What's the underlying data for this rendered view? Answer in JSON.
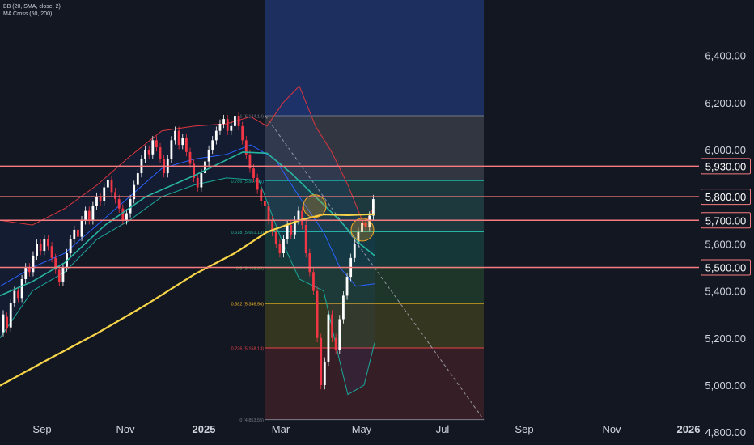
{
  "indicators": [
    "BB (20, SMA, close, 2)",
    "MA Cross (50, 200)"
  ],
  "colors": {
    "background": "#131722",
    "up_candle": "#ffffff",
    "down_candle": "#f23645",
    "bb_upper": "#d9363e",
    "bb_lower": "#1ba89a",
    "bb_basis": "#2962ff",
    "ma50": "#26b5a0",
    "ma200": "#f7d548",
    "horizontal_level": "#f77c80",
    "axis_text": "#d1d4dc",
    "trendline": "#9598a1"
  },
  "chart_data": {
    "type": "candlestick",
    "x_axis_ticks": [
      "Sep",
      "Nov",
      "2025",
      "Mar",
      "May",
      "Jul",
      "Sep",
      "Nov",
      "2026"
    ],
    "y_axis_ticks": [
      "6,400.00",
      "6,200.00",
      "6,000.00",
      "5,600.00",
      "5,400.00",
      "5,200.00",
      "5,000.00",
      "4,800.00"
    ],
    "y_range": [
      4780,
      6560
    ],
    "horizontal_levels": [
      {
        "value": 5930,
        "label": "5,930.00"
      },
      {
        "value": 5800,
        "label": "5,800.00"
      },
      {
        "value": 5700,
        "label": "5,700.00"
      },
      {
        "value": 5500,
        "label": "5,500.00"
      }
    ],
    "fibonacci_retracement": [
      {
        "ratio": "1",
        "value": 6144.14,
        "label": "1 (6,144.14)",
        "color": "#787b86",
        "fill": "#363a45"
      },
      {
        "ratio": "0.786",
        "value": 5867.95,
        "label": "0.786 (5,867.95)",
        "color": "#1ba89a",
        "fill": "#1f3d40"
      },
      {
        "ratio": "0.618",
        "value": 5651.13,
        "label": "0.618 (5,651.13)",
        "color": "#26b5a0",
        "fill": "#163b3a"
      },
      {
        "ratio": "0.5",
        "value": 5498.85,
        "label": "0.5 (5,498.85)",
        "color": "#4caf50",
        "fill": "#1f3a2a"
      },
      {
        "ratio": "0.382",
        "value": 5346.56,
        "label": "0.382 (5,346.56)",
        "color": "#f2b824",
        "fill": "#3a3a1f"
      },
      {
        "ratio": "0.236",
        "value": 5158.13,
        "label": "0.236 (5,158.13)",
        "color": "#e8414a",
        "fill": "#3b1f27"
      },
      {
        "ratio": "0",
        "value": 4853.55,
        "label": "0 (4,853.55)",
        "color": "#787b86",
        "fill": null
      }
    ],
    "ma200_series": [
      [
        0,
        4998
      ],
      [
        60,
        5110
      ],
      [
        120,
        5220
      ],
      [
        180,
        5340
      ],
      [
        240,
        5470
      ],
      [
        290,
        5560
      ],
      [
        330,
        5650
      ],
      [
        370,
        5700
      ],
      [
        400,
        5725
      ],
      [
        430,
        5722
      ],
      [
        463,
        5726
      ]
    ],
    "ma50_series": [
      [
        0,
        5380
      ],
      [
        40,
        5440
      ],
      [
        80,
        5520
      ],
      [
        130,
        5680
      ],
      [
        180,
        5800
      ],
      [
        240,
        5890
      ],
      [
        300,
        5990
      ],
      [
        330,
        5985
      ],
      [
        360,
        5900
      ],
      [
        390,
        5800
      ],
      [
        420,
        5700
      ],
      [
        445,
        5600
      ],
      [
        463,
        5550
      ]
    ],
    "bb_upper_series": [
      [
        0,
        5700
      ],
      [
        40,
        5680
      ],
      [
        80,
        5750
      ],
      [
        120,
        5850
      ],
      [
        160,
        5970
      ],
      [
        200,
        6080
      ],
      [
        240,
        6100
      ],
      [
        280,
        6110
      ],
      [
        310,
        6140
      ],
      [
        330,
        6100
      ],
      [
        350,
        6200
      ],
      [
        370,
        6270
      ],
      [
        390,
        6100
      ],
      [
        410,
        5990
      ],
      [
        430,
        5850
      ],
      [
        450,
        5680
      ],
      [
        463,
        5760
      ]
    ],
    "bb_lower_series": [
      [
        0,
        5200
      ],
      [
        40,
        5400
      ],
      [
        80,
        5480
      ],
      [
        120,
        5620
      ],
      [
        160,
        5700
      ],
      [
        200,
        5800
      ],
      [
        240,
        5850
      ],
      [
        280,
        5880
      ],
      [
        320,
        5870
      ],
      [
        350,
        5600
      ],
      [
        370,
        5450
      ],
      [
        400,
        5400
      ],
      [
        420,
        5100
      ],
      [
        430,
        4960
      ],
      [
        450,
        5000
      ],
      [
        463,
        5180
      ]
    ],
    "bb_basis_series": [
      [
        0,
        5420
      ],
      [
        40,
        5500
      ],
      [
        80,
        5560
      ],
      [
        120,
        5680
      ],
      [
        160,
        5800
      ],
      [
        200,
        5920
      ],
      [
        240,
        5960
      ],
      [
        280,
        5980
      ],
      [
        310,
        6020
      ],
      [
        340,
        5960
      ],
      [
        370,
        5800
      ],
      [
        400,
        5650
      ],
      [
        420,
        5500
      ],
      [
        440,
        5420
      ],
      [
        463,
        5430
      ]
    ],
    "candles": [
      [
        5225,
        5300
      ],
      [
        5290,
        5240
      ],
      [
        5245,
        5350
      ],
      [
        5350,
        5400
      ],
      [
        5400,
        5370
      ],
      [
        5370,
        5450
      ],
      [
        5450,
        5500
      ],
      [
        5500,
        5480
      ],
      [
        5480,
        5550
      ],
      [
        5550,
        5600
      ],
      [
        5600,
        5570
      ],
      [
        5570,
        5620
      ],
      [
        5620,
        5590
      ],
      [
        5590,
        5540
      ],
      [
        5540,
        5490
      ],
      [
        5490,
        5440
      ],
      [
        5440,
        5500
      ],
      [
        5500,
        5560
      ],
      [
        5560,
        5620
      ],
      [
        5620,
        5660
      ],
      [
        5660,
        5630
      ],
      [
        5630,
        5700
      ],
      [
        5700,
        5740
      ],
      [
        5740,
        5700
      ],
      [
        5700,
        5760
      ],
      [
        5760,
        5800
      ],
      [
        5800,
        5780
      ],
      [
        5780,
        5840
      ],
      [
        5840,
        5870
      ],
      [
        5870,
        5820
      ],
      [
        5820,
        5790
      ],
      [
        5790,
        5750
      ],
      [
        5750,
        5700
      ],
      [
        5700,
        5730
      ],
      [
        5730,
        5790
      ],
      [
        5790,
        5850
      ],
      [
        5850,
        5900
      ],
      [
        5900,
        5960
      ],
      [
        5960,
        6000
      ],
      [
        6000,
        5980
      ],
      [
        5980,
        6040
      ],
      [
        6040,
        6010
      ],
      [
        6010,
        5960
      ],
      [
        5960,
        5900
      ],
      [
        5900,
        5960
      ],
      [
        5960,
        6040
      ],
      [
        6040,
        6080
      ],
      [
        6080,
        6020
      ],
      [
        6020,
        6050
      ],
      [
        6050,
        5990
      ],
      [
        5990,
        5940
      ],
      [
        5940,
        5880
      ],
      [
        5880,
        5840
      ],
      [
        5840,
        5900
      ],
      [
        5900,
        5950
      ],
      [
        5950,
        6000
      ],
      [
        6000,
        6040
      ],
      [
        6040,
        6080
      ],
      [
        6080,
        6110
      ],
      [
        6110,
        6130
      ],
      [
        6130,
        6080
      ],
      [
        6080,
        6100
      ],
      [
        6100,
        6144
      ],
      [
        6144,
        6100
      ],
      [
        6100,
        6040
      ],
      [
        6040,
        5980
      ],
      [
        5980,
        5920
      ],
      [
        5920,
        5880
      ],
      [
        5880,
        5830
      ],
      [
        5830,
        5780
      ],
      [
        5780,
        5760
      ],
      [
        5760,
        5700
      ],
      [
        5700,
        5650
      ],
      [
        5650,
        5600
      ],
      [
        5600,
        5560
      ],
      [
        5560,
        5620
      ],
      [
        5620,
        5680
      ],
      [
        5680,
        5640
      ],
      [
        5640,
        5700
      ],
      [
        5700,
        5740
      ],
      [
        5740,
        5680
      ],
      [
        5680,
        5560
      ],
      [
        5560,
        5480
      ],
      [
        5480,
        5400
      ],
      [
        5400,
        5200
      ],
      [
        5200,
        5000
      ],
      [
        5000,
        5100
      ],
      [
        5100,
        5300
      ],
      [
        5300,
        5200
      ],
      [
        5200,
        5150
      ],
      [
        5150,
        5280
      ],
      [
        5280,
        5380
      ],
      [
        5380,
        5460
      ],
      [
        5460,
        5540
      ],
      [
        5540,
        5600
      ],
      [
        5600,
        5650
      ],
      [
        5650,
        5690
      ],
      [
        5690,
        5670
      ],
      [
        5670,
        5720
      ],
      [
        5720,
        5790
      ]
    ]
  }
}
